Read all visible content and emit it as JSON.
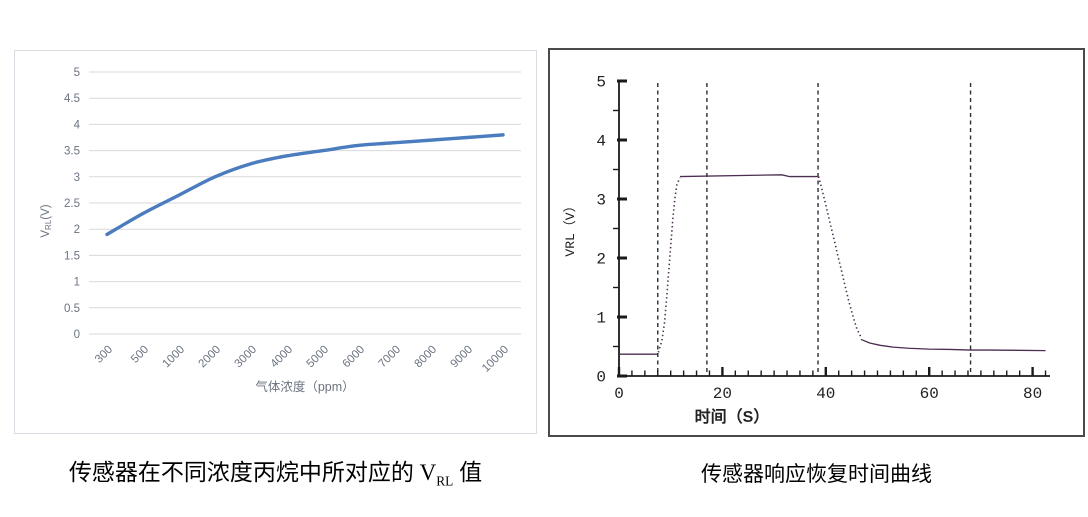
{
  "captions": {
    "left": {
      "prefix": "传感器在不同浓度丙烷中所对应的 V",
      "subscript": "RL",
      "suffix": " 值"
    },
    "right": "传感器响应恢复时间曲线"
  },
  "chart_data": [
    {
      "type": "line",
      "title": "",
      "categories": [
        "300",
        "500",
        "1000",
        "2000",
        "3000",
        "4000",
        "5000",
        "6000",
        "7000",
        "8000",
        "9000",
        "10000"
      ],
      "values": [
        1.9,
        2.3,
        2.65,
        3.0,
        3.25,
        3.4,
        3.5,
        3.6,
        3.65,
        3.7,
        3.75,
        3.8
      ],
      "xlabel": "气体浓度（ppm）",
      "ylabel_parts": {
        "prefix": "V",
        "sub": "RL",
        "suffix": "(V)"
      },
      "ylim": [
        0,
        5
      ],
      "ytick_step": 0.5,
      "grid": true,
      "legend": "none",
      "line_color": "#4a7cbe",
      "grid_color": "#d9d9d9",
      "label_color": "#6b7380"
    },
    {
      "type": "line",
      "title": "",
      "xlabel": "时间（S）",
      "ylabel": "VRL（V）",
      "xlim": [
        0,
        83
      ],
      "ylim": [
        0,
        5
      ],
      "xticks_major": [
        0,
        20,
        40,
        60,
        80
      ],
      "xtick_minor_step": 2.5,
      "yticks_major": [
        0,
        1,
        2,
        3,
        4,
        5
      ],
      "ytick_minor_step": 0.5,
      "dashed_vlines": [
        7.5,
        17,
        38.5,
        68
      ],
      "segments": [
        {
          "style": "solid",
          "points": [
            [
              0,
              0.37
            ],
            [
              7.6,
              0.37
            ]
          ]
        },
        {
          "style": "dotted",
          "points": [
            [
              7.6,
              0.4
            ],
            [
              8.3,
              0.6
            ],
            [
              8.8,
              0.9
            ],
            [
              9.2,
              1.3
            ],
            [
              9.6,
              1.75
            ],
            [
              10.0,
              2.2
            ],
            [
              10.4,
              2.65
            ],
            [
              10.8,
              3.0
            ],
            [
              11.2,
              3.25
            ],
            [
              11.8,
              3.36
            ]
          ]
        },
        {
          "style": "solid",
          "points": [
            [
              11.8,
              3.38
            ],
            [
              31.5,
              3.41
            ],
            [
              33,
              3.38
            ],
            [
              38.6,
              3.38
            ]
          ]
        },
        {
          "style": "dotted",
          "points": [
            [
              38.6,
              3.38
            ],
            [
              39.3,
              3.15
            ],
            [
              40.0,
              2.9
            ],
            [
              40.8,
              2.6
            ],
            [
              41.5,
              2.35
            ],
            [
              42.3,
              2.05
            ],
            [
              43.0,
              1.8
            ],
            [
              43.8,
              1.5
            ],
            [
              44.5,
              1.25
            ],
            [
              45.3,
              1.0
            ],
            [
              46.0,
              0.8
            ],
            [
              46.8,
              0.66
            ]
          ]
        },
        {
          "style": "solid",
          "points": [
            [
              46.8,
              0.62
            ],
            [
              48.5,
              0.56
            ],
            [
              50.5,
              0.52
            ],
            [
              53,
              0.49
            ],
            [
              56,
              0.47
            ],
            [
              60,
              0.455
            ],
            [
              64,
              0.45
            ],
            [
              68,
              0.44
            ],
            [
              72,
              0.44
            ],
            [
              77,
              0.435
            ],
            [
              82.5,
              0.43
            ]
          ]
        }
      ],
      "line_color": "#4b2e50",
      "vline_color": "#2c2c34",
      "axis_color": "#1a1a1a",
      "label_color": "#222222"
    }
  ]
}
